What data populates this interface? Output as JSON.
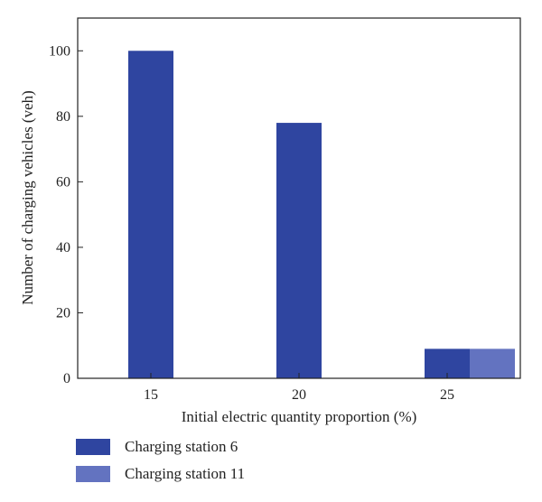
{
  "chart_data": {
    "type": "bar",
    "categories": [
      "15",
      "20",
      "25"
    ],
    "series": [
      {
        "name": "Charging station 6",
        "values": [
          100,
          78,
          9
        ],
        "color": "#2f45a0"
      },
      {
        "name": "Charging station 11",
        "values": [
          0,
          0,
          9
        ],
        "color": "#6373c0"
      }
    ],
    "xlabel": "Initial electric quantity proportion (%)",
    "ylabel": "Number of charging vehicles (veh)",
    "ylim": [
      0,
      110
    ],
    "yticks": [
      0,
      20,
      40,
      60,
      80,
      100
    ],
    "grid": false,
    "legend_placement": "bottom-left"
  }
}
